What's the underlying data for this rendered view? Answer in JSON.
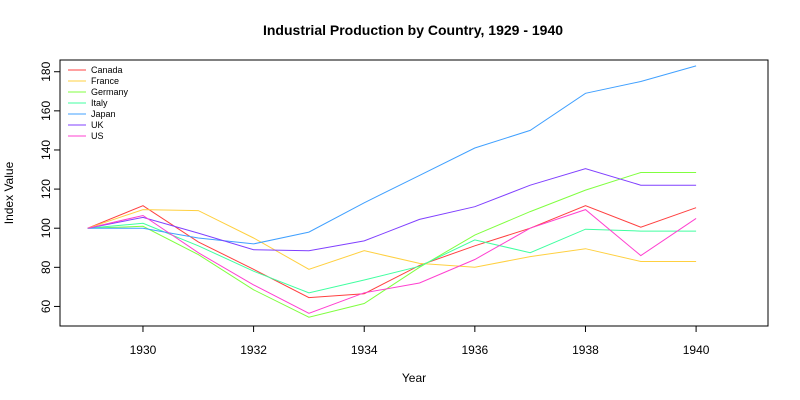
{
  "chart_data": {
    "type": "line",
    "title": "Industrial Production by Country,  1929 - 1940",
    "xlabel": "Year",
    "ylabel": "Index Value",
    "x": [
      1929,
      1930,
      1931,
      1932,
      1933,
      1934,
      1935,
      1936,
      1937,
      1938,
      1939,
      1940
    ],
    "xlim": [
      1928.5,
      1941.3
    ],
    "ylim": [
      50,
      186
    ],
    "xticks": [
      1930,
      1932,
      1934,
      1936,
      1938,
      1940
    ],
    "yticks": [
      60,
      80,
      100,
      120,
      140,
      160,
      180
    ],
    "grid": false,
    "legend_position": "top-left",
    "series": [
      {
        "name": "Canada",
        "color": "#ff4040",
        "values": [
          100,
          111.5,
          93,
          79,
          64.5,
          66.5,
          81,
          91,
          100,
          111.5,
          100.5,
          110.5
        ]
      },
      {
        "name": "France",
        "color": "#ffd040",
        "values": [
          100,
          109.5,
          109,
          95,
          79,
          88.5,
          82,
          80,
          85.5,
          89.5,
          83,
          83
        ]
      },
      {
        "name": "Germany",
        "color": "#80ff40",
        "values": [
          100,
          101,
          86.5,
          68.5,
          54.5,
          61.5,
          80,
          96.5,
          108.5,
          119.5,
          128.5,
          128.5
        ]
      },
      {
        "name": "Italy",
        "color": "#40ffa0",
        "values": [
          100,
          102.5,
          91,
          78,
          67,
          73.5,
          80.5,
          94,
          87.5,
          99.5,
          98.5,
          98.5
        ]
      },
      {
        "name": "Japan",
        "color": "#40a0ff",
        "values": [
          100,
          100,
          95,
          92,
          98,
          113,
          127,
          141,
          150,
          169,
          175,
          183
        ]
      },
      {
        "name": "UK",
        "color": "#8040ff",
        "values": [
          100,
          105.5,
          97.5,
          89,
          88.5,
          93.5,
          104.5,
          111,
          122,
          130.5,
          122,
          122
        ]
      },
      {
        "name": "US",
        "color": "#ff40d0",
        "values": [
          100,
          106.5,
          87.5,
          71,
          56.5,
          67,
          72,
          84,
          100,
          109.5,
          86,
          105
        ]
      }
    ]
  }
}
